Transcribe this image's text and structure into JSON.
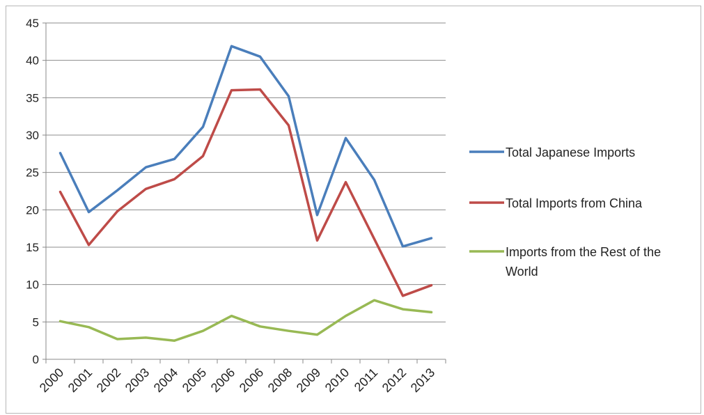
{
  "chart_data": {
    "type": "line",
    "title": "",
    "xlabel": "",
    "ylabel": "",
    "categories": [
      "2000",
      "2001",
      "2002",
      "2003",
      "2004",
      "2005",
      "2006",
      "2006",
      "2008",
      "2009",
      "2010",
      "2011",
      "2012",
      "2013"
    ],
    "ylim": [
      0,
      45
    ],
    "yticks": [
      0,
      5,
      10,
      15,
      20,
      25,
      30,
      35,
      40,
      45
    ],
    "grid": true,
    "legend_position": "right",
    "series": [
      {
        "name": "Total Japanese Imports",
        "color": "#4a7ebb",
        "values": [
          27.6,
          19.7,
          22.6,
          25.7,
          26.8,
          31.1,
          41.9,
          40.5,
          35.2,
          19.3,
          29.6,
          24.0,
          15.1,
          16.2
        ]
      },
      {
        "name": "Total Imports from China",
        "color": "#be4b48",
        "values": [
          22.4,
          15.3,
          19.8,
          22.8,
          24.1,
          27.2,
          36.0,
          36.1,
          31.3,
          15.9,
          23.7,
          16.1,
          8.5,
          9.9
        ]
      },
      {
        "name": "Imports from the Rest of the World",
        "color": "#98b954",
        "legend_lines": [
          "Imports from the Rest of the",
          "World"
        ],
        "values": [
          5.1,
          4.3,
          2.7,
          2.9,
          2.5,
          3.8,
          5.8,
          4.4,
          3.8,
          3.3,
          5.8,
          7.9,
          6.7,
          6.3
        ]
      }
    ]
  }
}
